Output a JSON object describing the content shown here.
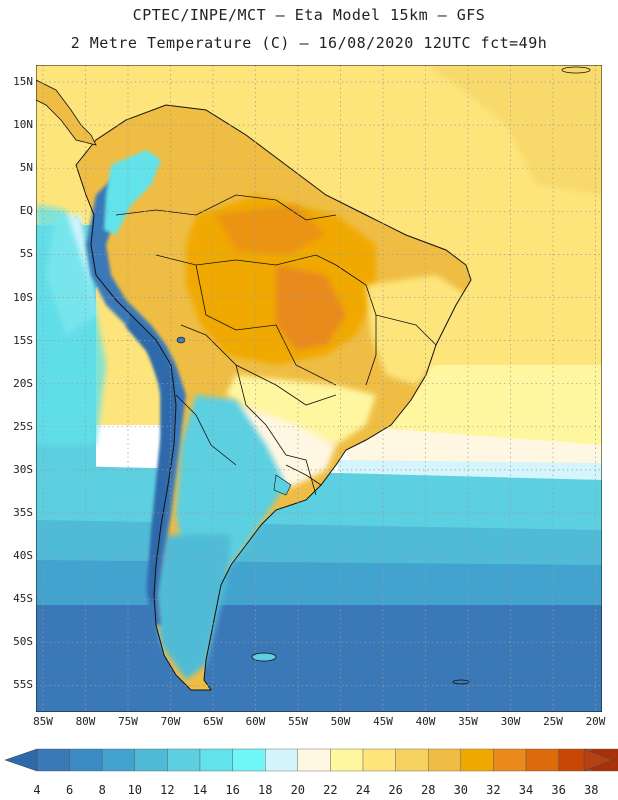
{
  "title_line1": "CPTEC/INPE/MCT –  Eta Model 15km – GFS",
  "title_line2": "2 Metre Temperature (C) – 16/08/2020 12UTC fct=49h",
  "lat_labels": [
    "15N",
    "10N",
    "5N",
    "EQ",
    "5S",
    "10S",
    "15S",
    "20S",
    "25S",
    "30S",
    "35S",
    "40S",
    "45S",
    "50S",
    "55S"
  ],
  "lon_labels": [
    "85W",
    "80W",
    "75W",
    "70W",
    "65W",
    "60W",
    "55W",
    "50W",
    "45W",
    "40W",
    "35W",
    "30W",
    "25W",
    "20W"
  ],
  "colorbar": {
    "values": [
      "4",
      "6",
      "8",
      "10",
      "12",
      "14",
      "16",
      "18",
      "20",
      "22",
      "24",
      "26",
      "28",
      "30",
      "32",
      "34",
      "36",
      "38"
    ],
    "colors": [
      "#3b78b8",
      "#3a8bc4",
      "#43a3cf",
      "#4fbbd6",
      "#5ccfe0",
      "#62e2ea",
      "#6ff6f7",
      "#d3f5fb",
      "#fff7e2",
      "#fff6a0",
      "#fde57c",
      "#f6d160",
      "#efbd44",
      "#f0a900",
      "#e98a1b",
      "#dd6a0b",
      "#c94704",
      "#a8300a"
    ],
    "low_end_color": "#2e6aab",
    "high_end_color": "#b54014"
  }
}
